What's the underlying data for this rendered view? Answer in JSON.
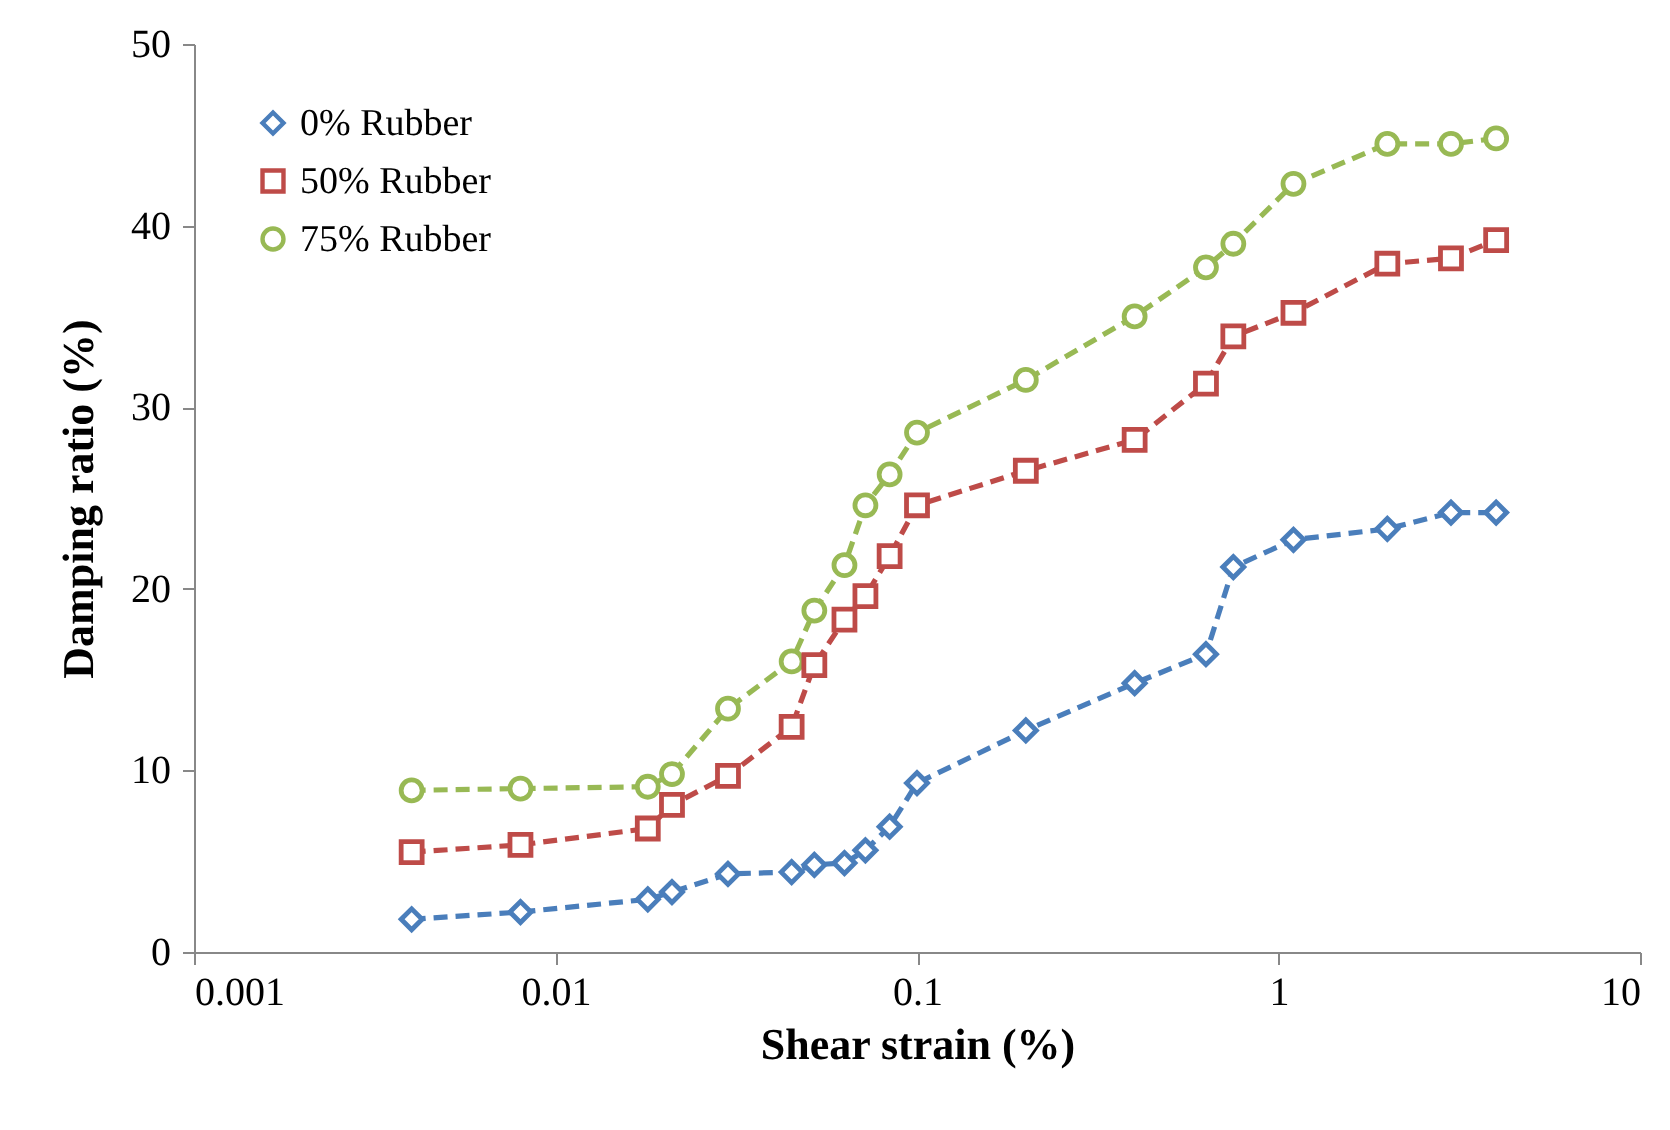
{
  "chart_data": {
    "type": "line",
    "xlabel": "Shear strain (%)",
    "ylabel": "Damping ratio (%)",
    "x": [
      0.004,
      0.008,
      0.018,
      0.021,
      0.03,
      0.045,
      0.052,
      0.063,
      0.072,
      0.084,
      0.1,
      0.2,
      0.4,
      0.63,
      0.75,
      1.1,
      2,
      3,
      4
    ],
    "series": [
      {
        "name": "0% Rubber",
        "color": "#4a7ebb",
        "marker": "diamond",
        "values": [
          1.8,
          2.2,
          2.9,
          3.3,
          4.3,
          4.4,
          4.8,
          4.9,
          5.6,
          6.9,
          9.3,
          12.2,
          14.8,
          16.4,
          21.2,
          22.7,
          23.3,
          24.2,
          24.2
        ]
      },
      {
        "name": "50% Rubber",
        "color": "#be4b48",
        "marker": "square",
        "values": [
          5.5,
          5.9,
          6.8,
          8.1,
          9.7,
          12.4,
          15.8,
          18.3,
          19.6,
          21.8,
          24.6,
          26.5,
          28.2,
          31.3,
          33.9,
          35.2,
          37.9,
          38.2,
          39.2
        ]
      },
      {
        "name": "75% Rubber",
        "color": "#98b954",
        "marker": "circle",
        "values": [
          8.9,
          9.0,
          9.1,
          9.8,
          13.4,
          16.0,
          18.8,
          21.3,
          24.6,
          26.3,
          28.6,
          31.5,
          35.0,
          37.7,
          39.0,
          42.3,
          44.5,
          44.5,
          44.8
        ]
      }
    ],
    "xlim": [
      0.001,
      10
    ],
    "xticks": [
      0.001,
      0.01,
      0.1,
      1,
      10
    ],
    "log": "x",
    "ylim": [
      0,
      50
    ],
    "yticks": [
      0,
      10,
      20,
      30,
      40,
      50
    ],
    "grid": false,
    "legend": "top left",
    "line_style": "dashed"
  }
}
